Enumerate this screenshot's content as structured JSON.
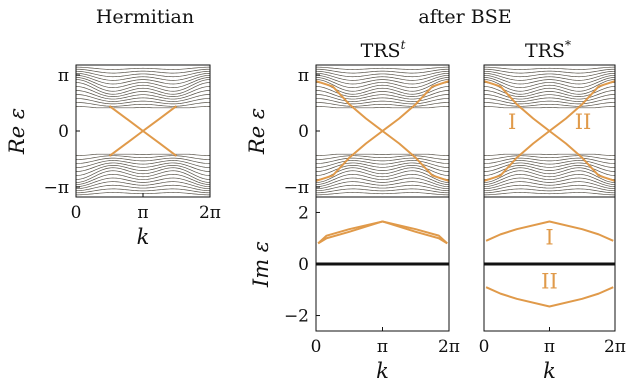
{
  "figure": {
    "col_titles": [
      "Hermitian",
      "after BSE"
    ],
    "sub_titles": [
      {
        "main": "TRS",
        "sup": "t"
      },
      {
        "main": "TRS",
        "sup": "*"
      }
    ],
    "colors": {
      "bands": "#3a3428",
      "edge": "#e09a4a",
      "frame": "#111111"
    }
  },
  "chart_data": [
    {
      "id": "hermitian_re",
      "type": "line",
      "title": "Hermitian",
      "xlabel": "k",
      "ylabel": "Re ε",
      "xlim": [
        0,
        6.2832
      ],
      "ylim": [
        -3.7,
        3.7
      ],
      "xticks": [
        "0",
        "π",
        "2π"
      ],
      "yticks": [
        "π",
        "0",
        "−π"
      ],
      "bulk_bands": {
        "count_per_side": 14,
        "energy_range_upper": [
          1.3,
          3.5
        ],
        "energy_range_lower": [
          -3.5,
          -1.3
        ]
      },
      "series": [
        {
          "x": [
            1.57,
            2.36,
            3.14,
            3.93,
            4.71
          ],
          "y": [
            1.4,
            0.7,
            0,
            -0.7,
            -1.4
          ]
        },
        {
          "x": [
            1.57,
            2.36,
            3.14,
            3.93,
            4.71
          ],
          "y": [
            -1.4,
            -0.7,
            0,
            0.7,
            1.4
          ]
        }
      ]
    },
    {
      "id": "trs_t_re",
      "type": "line",
      "title": "TRS^t",
      "xlabel": "",
      "ylabel": "Re ε",
      "xlim": [
        0,
        6.2832
      ],
      "ylim": [
        -3.7,
        3.7
      ],
      "xticks": [],
      "yticks": [
        "π",
        "0",
        "−π"
      ],
      "bulk_bands": {
        "count_per_side": 14,
        "energy_range_upper": [
          1.3,
          3.5
        ],
        "energy_range_lower": [
          -3.5,
          -1.3
        ]
      },
      "series": [
        {
          "x": [
            0,
            0.79,
            1.57,
            2.36,
            3.14,
            3.93,
            4.71,
            5.5,
            6.28
          ],
          "y": [
            2.8,
            2.5,
            1.5,
            0.7,
            0,
            -0.7,
            -1.5,
            -2.5,
            -2.8
          ]
        },
        {
          "x": [
            0,
            0.79,
            1.57,
            2.36,
            3.14,
            3.93,
            4.71,
            5.5,
            6.28
          ],
          "y": [
            -2.8,
            -2.5,
            -1.5,
            -0.7,
            0,
            0.7,
            1.5,
            2.5,
            2.8
          ]
        }
      ]
    },
    {
      "id": "trs_star_re",
      "type": "line",
      "title": "TRS*",
      "xlabel": "",
      "ylabel": "",
      "xlim": [
        0,
        6.2832
      ],
      "ylim": [
        -3.7,
        3.7
      ],
      "xticks": [],
      "yticks": [],
      "annotations": [
        "I",
        "II"
      ],
      "bulk_bands": {
        "count_per_side": 14,
        "energy_range_upper": [
          1.3,
          3.5
        ],
        "energy_range_lower": [
          -3.5,
          -1.3
        ]
      },
      "series": [
        {
          "x": [
            0,
            0.79,
            1.57,
            2.36,
            3.14,
            3.93,
            4.71,
            5.5,
            6.28
          ],
          "y": [
            2.8,
            2.5,
            1.5,
            0.7,
            0,
            -0.7,
            -1.5,
            -2.5,
            -2.8
          ]
        },
        {
          "x": [
            0,
            0.79,
            1.57,
            2.36,
            3.14,
            3.93,
            4.71,
            5.5,
            6.28
          ],
          "y": [
            -2.8,
            -2.5,
            -1.5,
            -0.7,
            0,
            0.7,
            1.5,
            2.5,
            2.8
          ]
        }
      ]
    },
    {
      "id": "trs_t_im",
      "type": "line",
      "title": "",
      "xlabel": "k",
      "ylabel": "Im ε",
      "xlim": [
        0,
        6.2832
      ],
      "ylim": [
        -2.6,
        2.6
      ],
      "xticks": [
        "0",
        "π",
        "2π"
      ],
      "yticks": [
        "2",
        "0",
        "−2"
      ],
      "series": [
        {
          "x": [
            0.1,
            0.5,
            1.57,
            3.14,
            4.71,
            5.8,
            6.2
          ],
          "y": [
            0.8,
            1.1,
            1.35,
            1.65,
            1.35,
            1.1,
            0.8
          ]
        },
        {
          "x": [
            0.1,
            0.5,
            1.57,
            3.14,
            4.71,
            5.8,
            6.2
          ],
          "y": [
            0.8,
            1.0,
            1.25,
            1.65,
            1.25,
            1.0,
            0.8
          ]
        },
        {
          "x": [
            0,
            1.57,
            3.14,
            4.71,
            6.28
          ],
          "y": [
            0,
            0,
            0,
            0,
            0
          ]
        }
      ]
    },
    {
      "id": "trs_star_im",
      "type": "line",
      "title": "",
      "xlabel": "k",
      "ylabel": "",
      "xlim": [
        0,
        6.2832
      ],
      "ylim": [
        -2.6,
        2.6
      ],
      "xticks": [
        "0",
        "π",
        "2π"
      ],
      "yticks": [],
      "annotations": [
        "I",
        "II"
      ],
      "series": [
        {
          "x": [
            0.1,
            0.79,
            1.57,
            3.14,
            4.71,
            5.5,
            6.2
          ],
          "y": [
            0.9,
            1.15,
            1.35,
            1.65,
            1.35,
            1.15,
            0.9
          ]
        },
        {
          "x": [
            0.1,
            0.79,
            1.57,
            3.14,
            4.71,
            5.5,
            6.2
          ],
          "y": [
            -0.9,
            -1.15,
            -1.35,
            -1.65,
            -1.35,
            -1.15,
            -0.9
          ]
        },
        {
          "x": [
            0,
            1.57,
            3.14,
            4.71,
            6.28
          ],
          "y": [
            0,
            0,
            0,
            0,
            0
          ]
        }
      ]
    }
  ]
}
